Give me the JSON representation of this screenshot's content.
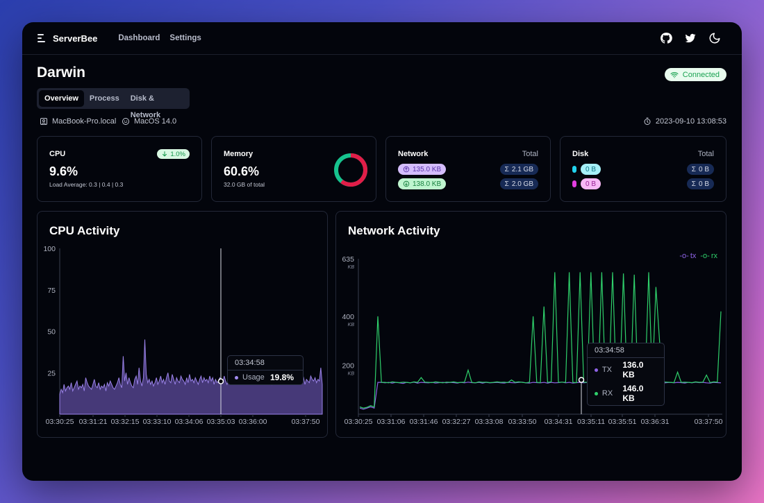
{
  "app": {
    "brand": "ServerBee"
  },
  "nav": {
    "dashboard": "Dashboard",
    "settings": "Settings"
  },
  "host": {
    "name": "Darwin",
    "status": "Connected"
  },
  "tabs": [
    "Overview",
    "Process",
    "Disk & Network"
  ],
  "meta": {
    "hostname": "MacBook-Pro.local",
    "os": "MacOS 14.0",
    "timestamp": "2023-09-10 13:08:53"
  },
  "cpu_card": {
    "title": "CPU",
    "value": "9.6%",
    "change": "1.0%",
    "load": "Load Average: 0.3 | 0.4 | 0.3"
  },
  "memory_card": {
    "title": "Memory",
    "value": "60.6%",
    "total": "32.0 GB of total",
    "used_fraction": 0.606
  },
  "network_card": {
    "title": "Network",
    "total_label": "Total",
    "tx": "135.0 KB",
    "rx": "138.0 KB",
    "tx_total": "2.1 GB",
    "rx_total": "2.0 GB"
  },
  "disk_card": {
    "title": "Disk",
    "total_label": "Total",
    "read": "0 B",
    "write": "0 B",
    "read_total": "0 B",
    "write_total": "0 B"
  },
  "colors": {
    "accent_purple": "#7c5fd6",
    "accent_green": "#2fd06b",
    "status_green": "#18a250",
    "memory_used": "#e11d48",
    "memory_free": "#17c38e"
  },
  "cpu_chart": {
    "title": "CPU Activity",
    "tooltip": {
      "time": "03:34:58",
      "label": "Usage",
      "value": "19.8%"
    }
  },
  "network_chart": {
    "title": "Network Activity",
    "legend": {
      "tx": "tx",
      "rx": "rx"
    },
    "tooltip": {
      "time": "03:34:58",
      "tx_label": "TX",
      "tx_value": "136.0 KB",
      "rx_label": "RX",
      "rx_value": "146.0 KB"
    }
  },
  "chart_data": [
    {
      "type": "area",
      "title": "CPU Activity",
      "series": [
        {
          "name": "Usage",
          "values": [
            12,
            15,
            13,
            18,
            14,
            16,
            17,
            15,
            19,
            14,
            16,
            18,
            20,
            15,
            17,
            16,
            18,
            14,
            22,
            19,
            17,
            16,
            15,
            18,
            21,
            17,
            16,
            19,
            15,
            17,
            16,
            18,
            14,
            19,
            17,
            20,
            18,
            16,
            15,
            17,
            19,
            22,
            18,
            16,
            35,
            20,
            25,
            18,
            22,
            19,
            17,
            16,
            21,
            23,
            18,
            28,
            20,
            17,
            22,
            45,
            24,
            19,
            21,
            18,
            20,
            17,
            19,
            22,
            18,
            20,
            23,
            19,
            21,
            18,
            22,
            25,
            20,
            19,
            24,
            21,
            18,
            22,
            20,
            19,
            23,
            21,
            20,
            18,
            22,
            19,
            24,
            20,
            21,
            19,
            22,
            20,
            18,
            21,
            23,
            19,
            22,
            20,
            21,
            19,
            23,
            20,
            22,
            18,
            21,
            19,
            20,
            22,
            21,
            19,
            23,
            20,
            18,
            21,
            22,
            20,
            19,
            23,
            21,
            20,
            22,
            18,
            21,
            19,
            24,
            20,
            22,
            21,
            19,
            20,
            23,
            21,
            18,
            22,
            20,
            19,
            21,
            23,
            20,
            22,
            19,
            21,
            20,
            18,
            22,
            21,
            19,
            20,
            23,
            21,
            22,
            20,
            19,
            21,
            18,
            22,
            20,
            21,
            19,
            23,
            20,
            22,
            21,
            19,
            20,
            22,
            18,
            21,
            20,
            19,
            23,
            21,
            20,
            22,
            19,
            21,
            20,
            28,
            18
          ]
        }
      ],
      "x_ticks": [
        "03:30:25",
        "03:31:21",
        "03:32:15",
        "03:33:10",
        "03:34:06",
        "03:35:03",
        "03:36:00",
        "03:37:50"
      ],
      "y_ticks": [
        25,
        50,
        75,
        100
      ],
      "ylim": [
        0,
        100
      ],
      "grid": false
    },
    {
      "type": "line",
      "title": "Network Activity",
      "series": [
        {
          "name": "tx",
          "values": [
            25,
            20,
            25,
            30,
            25,
            130,
            130,
            128,
            130,
            127,
            130,
            128,
            126,
            130,
            128,
            131,
            127,
            130,
            129,
            128,
            130,
            127,
            129,
            130,
            128,
            130,
            129,
            127,
            130,
            128,
            131,
            129,
            128,
            130,
            127,
            130,
            128,
            129,
            130,
            128,
            127,
            130,
            129,
            128,
            130,
            131,
            128,
            127,
            130,
            129,
            128,
            130,
            127,
            130,
            128,
            129,
            131,
            128,
            130,
            127,
            129,
            130,
            128,
            130,
            129,
            127,
            130,
            128,
            131,
            129,
            130,
            128,
            127,
            130,
            129,
            128,
            130,
            127,
            130,
            128,
            129,
            131,
            128,
            130,
            127,
            129,
            130,
            128,
            130,
            129,
            127,
            130,
            128,
            131,
            129,
            130,
            128,
            127,
            130,
            129,
            128
          ]
        },
        {
          "name": "rx",
          "values": [
            30,
            25,
            28,
            35,
            30,
            400,
            130,
            130,
            128,
            132,
            130,
            129,
            131,
            130,
            128,
            132,
            130,
            150,
            131,
            130,
            129,
            132,
            130,
            128,
            131,
            130,
            132,
            129,
            130,
            131,
            180,
            130,
            128,
            132,
            130,
            131,
            129,
            130,
            132,
            130,
            131,
            129,
            140,
            130,
            132,
            130,
            128,
            131,
            400,
            130,
            129,
            440,
            130,
            132,
            580,
            130,
            131,
            130,
            580,
            130,
            129,
            580,
            131,
            130,
            580,
            132,
            129,
            580,
            130,
            131,
            580,
            129,
            130,
            575,
            131,
            130,
            570,
            131,
            130,
            129,
            580,
            131,
            520,
            300,
            132,
            131,
            130,
            129,
            172,
            130,
            131,
            130,
            129,
            132,
            130,
            131,
            160,
            129,
            132,
            131,
            420
          ]
        }
      ],
      "x_ticks": [
        "03:30:25",
        "03:31:06",
        "03:31:46",
        "03:32:27",
        "03:33:08",
        "03:33:50",
        "03:34:31",
        "03:35:11",
        "03:35:51",
        "03:36:31",
        "03:37:50"
      ],
      "y_ticks": [
        "200",
        "400",
        "635"
      ],
      "y_unit": "KB",
      "ylim": [
        0,
        635
      ],
      "grid": false
    }
  ]
}
